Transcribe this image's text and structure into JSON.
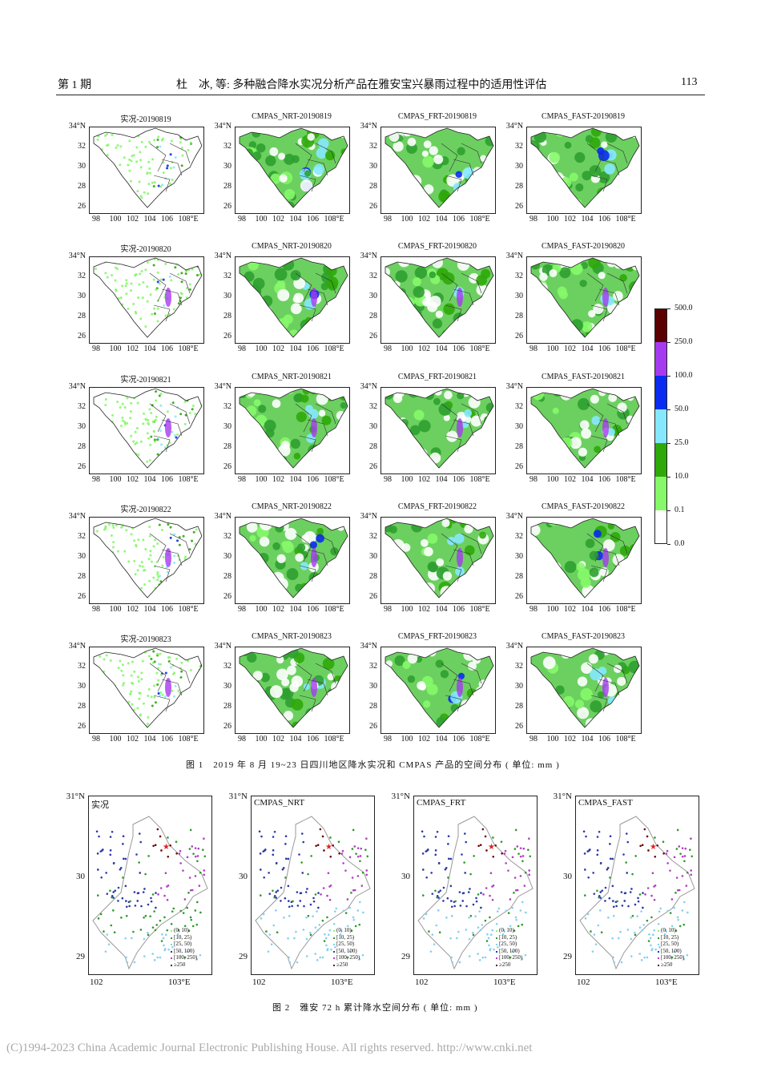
{
  "header": {
    "issue": "第 1 期",
    "running_title": "杜　冰, 等: 多种融合降水实况分析产品在雅安宝兴暴雨过程中的适用性评估",
    "page_number": "113"
  },
  "figure1": {
    "panel_titles": [
      [
        "实况-20190819",
        "CMPAS_NRT-20190819",
        "CMPAS_FRT-20190819",
        "CMPAS_FAST-20190819"
      ],
      [
        "实况-20190820",
        "CMPAS_NRT-20190820",
        "CMPAS_FRT-20190820",
        "CMPAS_FAST-20190820"
      ],
      [
        "实况-20190821",
        "CMPAS_NRT-20190821",
        "CMPAS_FRT-20190821",
        "CMPAS_FAST-20190821"
      ],
      [
        "实况-20190822",
        "CMPAS_NRT-20190822",
        "CMPAS_FRT-20190822",
        "CMPAS_FAST-20190822"
      ],
      [
        "实况-20190823",
        "CMPAS_NRT-20190823",
        "CMPAS_FRT-20190823",
        "CMPAS_FAST-20190823"
      ]
    ],
    "y_ticks": [
      "34°N",
      "32",
      "30",
      "28",
      "26"
    ],
    "x_ticks": [
      "98",
      "100",
      "102",
      "104",
      "106",
      "108°E"
    ],
    "colorbar": {
      "labels": [
        "500.0",
        "250.0",
        "100.0",
        "50.0",
        "25.0",
        "10.0",
        "0.1",
        "0.0"
      ],
      "colors": [
        "#5a0000",
        "#a63af0",
        "#0a2cf0",
        "#86e8ff",
        "#2fa80a",
        "#86f86a",
        "#ffffff"
      ]
    },
    "caption": "图 1　2019 年 8 月 19~23 日四川地区降水实况和 CMPAS 产品的空间分布 ( 单位: mm )"
  },
  "figure2": {
    "panel_titles": [
      "实况",
      "CMPAS_NRT",
      "CMPAS_FRT",
      "CMPAS_FAST"
    ],
    "y_ticks": [
      "31°N",
      "30",
      "29"
    ],
    "x_ticks": [
      "102",
      "103°E"
    ],
    "legend": [
      {
        "label": "(0, 10)",
        "color": "#86f86a"
      },
      {
        "label": "[10, 25)",
        "color": "#2f9a2a"
      },
      {
        "label": "[25, 50)",
        "color": "#86d0f0"
      },
      {
        "label": "[50, 100)",
        "color": "#2a3aa8"
      },
      {
        "label": "[100, 250)",
        "color": "#b040c0"
      },
      {
        "label": "≥250",
        "color": "#6a0a0a"
      }
    ],
    "caption": "图 2　雅安 72 h 累计降水空间分布 ( 单位: mm )"
  },
  "footer": "(C)1994-2023 China Academic Journal Electronic Publishing House. All rights reserved.    http://www.cnki.net"
}
